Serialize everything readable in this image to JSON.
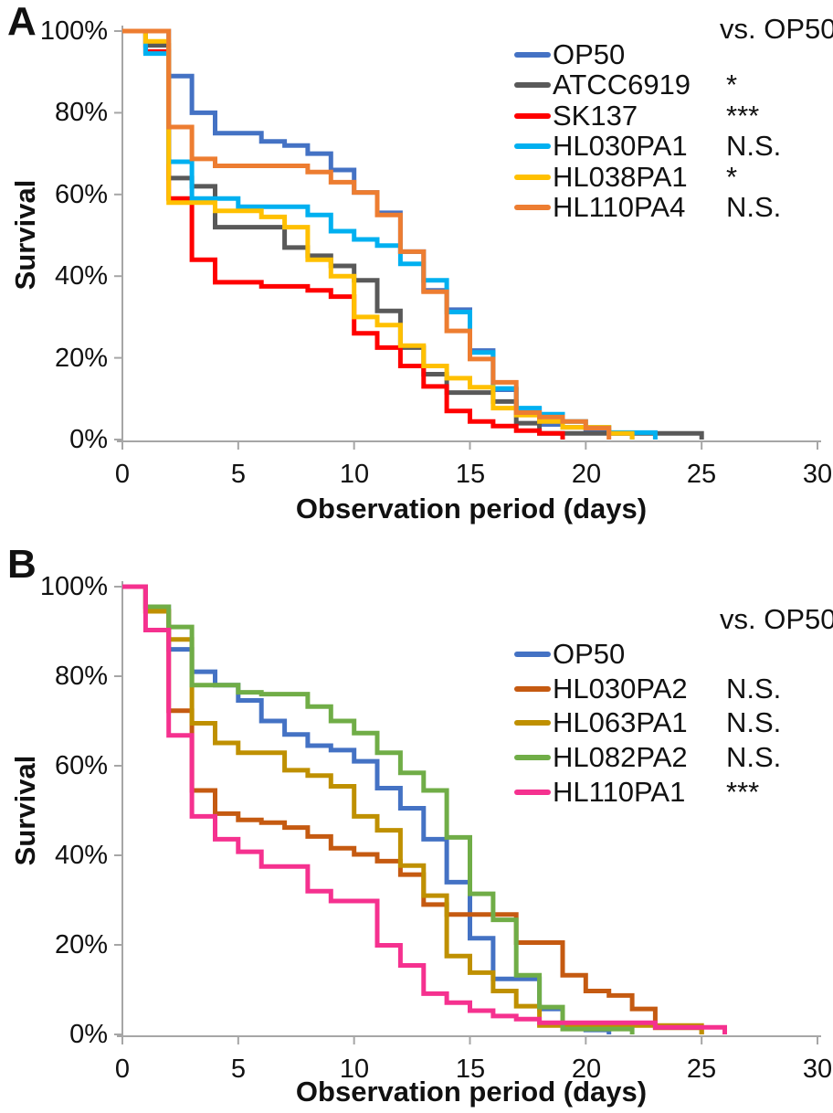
{
  "chart_data": [
    {
      "type": "line",
      "subtype": "kaplan-meier-step-survival",
      "panel_label": "A",
      "legend_note": "vs. OP50",
      "xlabel": "Observation period (days)",
      "ylabel": "Survival",
      "xlim": [
        0,
        30
      ],
      "ylim_pct": [
        0,
        100
      ],
      "x_ticks": [
        "0",
        "5",
        "10",
        "15",
        "20",
        "25",
        "30"
      ],
      "y_ticks": [
        "100%",
        "80%",
        "60%",
        "40%",
        "20%",
        "0%"
      ],
      "grid": false,
      "legend_position": "top-right-inside",
      "axis_color": "#a6a6a6",
      "series": [
        {
          "name": "OP50",
          "color": "#4472C4",
          "significance_vs_op50": "",
          "points_day_pct": [
            [
              0,
              100
            ],
            [
              2,
              89
            ],
            [
              3,
              80
            ],
            [
              4,
              75
            ],
            [
              6,
              73
            ],
            [
              7,
              72
            ],
            [
              8,
              70
            ],
            [
              9,
              66
            ],
            [
              10,
              60.5
            ],
            [
              11,
              55.5
            ],
            [
              12,
              46
            ],
            [
              13,
              36.5
            ],
            [
              14,
              31.8
            ],
            [
              15,
              21.8
            ],
            [
              16,
              12.2
            ],
            [
              17,
              7.5
            ],
            [
              18,
              3.7
            ],
            [
              19,
              3
            ],
            [
              20,
              2.2
            ],
            [
              21,
              1.5
            ],
            [
              22,
              0
            ]
          ]
        },
        {
          "name": "ATCC6919",
          "color": "#595959",
          "significance_vs_op50": "*",
          "points_day_pct": [
            [
              0,
              100
            ],
            [
              1,
              96.5
            ],
            [
              2,
              64
            ],
            [
              3,
              62
            ],
            [
              4,
              52
            ],
            [
              7,
              47
            ],
            [
              8,
              45
            ],
            [
              9,
              42.5
            ],
            [
              10,
              39
            ],
            [
              11,
              31.5
            ],
            [
              12,
              22.5
            ],
            [
              13,
              16
            ],
            [
              14,
              11.5
            ],
            [
              16,
              9.3
            ],
            [
              17,
              4
            ],
            [
              18,
              1.5
            ],
            [
              25,
              0
            ]
          ]
        },
        {
          "name": "SK137",
          "color": "#FF0000",
          "significance_vs_op50": "***",
          "points_day_pct": [
            [
              0,
              100
            ],
            [
              1,
              95
            ],
            [
              2,
              59
            ],
            [
              3,
              44
            ],
            [
              4,
              38.5
            ],
            [
              6,
              37.5
            ],
            [
              8,
              36.5
            ],
            [
              9,
              35
            ],
            [
              10,
              26
            ],
            [
              11,
              22.5
            ],
            [
              12,
              18
            ],
            [
              13,
              13
            ],
            [
              14,
              7
            ],
            [
              15,
              4.4
            ],
            [
              16,
              3.3
            ],
            [
              17,
              2.2
            ],
            [
              18,
              1.5
            ],
            [
              19,
              0
            ]
          ]
        },
        {
          "name": "HL030PA1",
          "color": "#00B0F0",
          "significance_vs_op50": "N.S.",
          "points_day_pct": [
            [
              0,
              100
            ],
            [
              1,
              94.5
            ],
            [
              2,
              68
            ],
            [
              3,
              59
            ],
            [
              5,
              57
            ],
            [
              8,
              55
            ],
            [
              9,
              51
            ],
            [
              10,
              49
            ],
            [
              11,
              47.5
            ],
            [
              12,
              43
            ],
            [
              13,
              39
            ],
            [
              14,
              31.2
            ],
            [
              15,
              21.3
            ],
            [
              16,
              12.5
            ],
            [
              17,
              7.7
            ],
            [
              18,
              6.2
            ],
            [
              19,
              4.4
            ],
            [
              20,
              3
            ],
            [
              21,
              1.7
            ],
            [
              23,
              0
            ]
          ]
        },
        {
          "name": "HL038PA1",
          "color": "#FFC000",
          "significance_vs_op50": "*",
          "points_day_pct": [
            [
              0,
              100
            ],
            [
              1,
              97.5
            ],
            [
              2,
              58
            ],
            [
              4,
              56
            ],
            [
              6,
              54.5
            ],
            [
              7,
              52
            ],
            [
              8,
              44
            ],
            [
              9,
              40
            ],
            [
              10,
              30
            ],
            [
              11,
              28
            ],
            [
              12,
              23
            ],
            [
              13,
              18
            ],
            [
              14,
              15
            ],
            [
              15,
              12.8
            ],
            [
              16,
              7.7
            ],
            [
              17,
              6
            ],
            [
              18,
              4.4
            ],
            [
              19,
              3
            ],
            [
              21,
              1.5
            ],
            [
              22,
              0
            ]
          ]
        },
        {
          "name": "HL110PA4",
          "color": "#ED7D31",
          "significance_vs_op50": "N.S.",
          "points_day_pct": [
            [
              0,
              100
            ],
            [
              2,
              76.5
            ],
            [
              3,
              68.7
            ],
            [
              4,
              67
            ],
            [
              8,
              65.5
            ],
            [
              9,
              63
            ],
            [
              10,
              60.5
            ],
            [
              11,
              55
            ],
            [
              12,
              46
            ],
            [
              13,
              36.2
            ],
            [
              14,
              26.6
            ],
            [
              15,
              19.7
            ],
            [
              16,
              14
            ],
            [
              17,
              6.6
            ],
            [
              18,
              5.5
            ],
            [
              19,
              4.4
            ],
            [
              20,
              2.8
            ],
            [
              21,
              0
            ]
          ]
        }
      ]
    },
    {
      "type": "line",
      "subtype": "kaplan-meier-step-survival",
      "panel_label": "B",
      "legend_note": "vs. OP50",
      "xlabel": "Observation period (days)",
      "ylabel": "Survival",
      "xlim": [
        0,
        30
      ],
      "ylim_pct": [
        0,
        100
      ],
      "x_ticks": [
        "0",
        "5",
        "10",
        "15",
        "20",
        "25",
        "30"
      ],
      "y_ticks": [
        "100%",
        "80%",
        "60%",
        "40%",
        "20%",
        "0%"
      ],
      "grid": false,
      "legend_position": "top-right-inside",
      "axis_color": "#a6a6a6",
      "series": [
        {
          "name": "OP50",
          "color": "#4472C4",
          "significance_vs_op50": "",
          "points_day_pct": [
            [
              0,
              100
            ],
            [
              1,
              95.5
            ],
            [
              2,
              86
            ],
            [
              3,
              81
            ],
            [
              4,
              78
            ],
            [
              5,
              74.6
            ],
            [
              6,
              70
            ],
            [
              7,
              67
            ],
            [
              8,
              64.5
            ],
            [
              9,
              63.5
            ],
            [
              10,
              61
            ],
            [
              11,
              55
            ],
            [
              12,
              50.5
            ],
            [
              13,
              43.6
            ],
            [
              14,
              34
            ],
            [
              15,
              21.5
            ],
            [
              16,
              12.4
            ],
            [
              18,
              5.7
            ],
            [
              19,
              2
            ],
            [
              20,
              1
            ],
            [
              21,
              0
            ]
          ]
        },
        {
          "name": "HL030PA2",
          "color": "#C55A11",
          "significance_vs_op50": "N.S.",
          "points_day_pct": [
            [
              0,
              100
            ],
            [
              1,
              94.5
            ],
            [
              2,
              72.3
            ],
            [
              3,
              54.5
            ],
            [
              4,
              49.3
            ],
            [
              5,
              47.9
            ],
            [
              6,
              47.3
            ],
            [
              7,
              46.2
            ],
            [
              8,
              44.2
            ],
            [
              9,
              41.6
            ],
            [
              10,
              40.2
            ],
            [
              11,
              38.7
            ],
            [
              12,
              35.7
            ],
            [
              13,
              29
            ],
            [
              14,
              26.8
            ],
            [
              17,
              20.5
            ],
            [
              19,
              13.2
            ],
            [
              20,
              9.7
            ],
            [
              21,
              8.7
            ],
            [
              22,
              5.7
            ],
            [
              23,
              1.5
            ],
            [
              25,
              0
            ]
          ]
        },
        {
          "name": "HL063PA1",
          "color": "#BF9000",
          "significance_vs_op50": "N.S.",
          "points_day_pct": [
            [
              0,
              100
            ],
            [
              1,
              94.5
            ],
            [
              2,
              88.2
            ],
            [
              3,
              69.5
            ],
            [
              4,
              65.1
            ],
            [
              5,
              62.9
            ],
            [
              7,
              59
            ],
            [
              8,
              57.8
            ],
            [
              9,
              55.4
            ],
            [
              10,
              48.7
            ],
            [
              11,
              45.6
            ],
            [
              12,
              37.7
            ],
            [
              13,
              31
            ],
            [
              14,
              17.5
            ],
            [
              15,
              13.8
            ],
            [
              16,
              9.7
            ],
            [
              17,
              6.3
            ],
            [
              18,
              2
            ],
            [
              25,
              0
            ]
          ]
        },
        {
          "name": "HL082PA2",
          "color": "#70AD47",
          "significance_vs_op50": "N.S.",
          "points_day_pct": [
            [
              0,
              100
            ],
            [
              1,
              95.5
            ],
            [
              2,
              91
            ],
            [
              3,
              78
            ],
            [
              5,
              76.4
            ],
            [
              6,
              76
            ],
            [
              8,
              73.2
            ],
            [
              9,
              70
            ],
            [
              10,
              67.3
            ],
            [
              11,
              62.9
            ],
            [
              12,
              58.4
            ],
            [
              13,
              54.5
            ],
            [
              14,
              44
            ],
            [
              15,
              31.4
            ],
            [
              16,
              25.6
            ],
            [
              17,
              13.2
            ],
            [
              18,
              6.1
            ],
            [
              19,
              1.2
            ],
            [
              22,
              0
            ]
          ]
        },
        {
          "name": "HL110PA1",
          "color": "#F5318F",
          "significance_vs_op50": "***",
          "points_day_pct": [
            [
              0,
              100
            ],
            [
              1,
              90.3
            ],
            [
              2,
              66.8
            ],
            [
              3,
              48.7
            ],
            [
              4,
              43.6
            ],
            [
              5,
              40.8
            ],
            [
              6,
              37.5
            ],
            [
              8,
              32
            ],
            [
              9,
              29.8
            ],
            [
              11,
              19.9
            ],
            [
              12,
              15.4
            ],
            [
              13,
              9.1
            ],
            [
              14,
              7.1
            ],
            [
              15,
              5.3
            ],
            [
              16,
              4.1
            ],
            [
              17,
              3.4
            ],
            [
              18,
              2.6
            ],
            [
              23,
              1.6
            ],
            [
              26,
              0
            ]
          ]
        }
      ]
    }
  ]
}
